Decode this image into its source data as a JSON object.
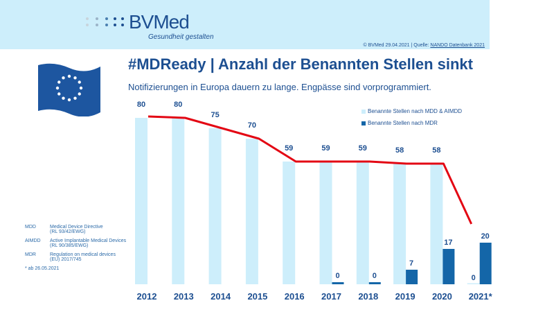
{
  "header": {
    "logo": "BVMed",
    "slogan": "Gesundheit gestalten",
    "copyright": "© BVMed 29.04.2021 | Quelle: ",
    "source_link": "NANDO Datenbank 2021"
  },
  "title": "#MDReady | Anzahl der Benannten Stellen sinkt",
  "subtitle": "Notifizierungen in Europa dauern zu lange. Engpässe sind vorprogrammiert.",
  "colors": {
    "header_bg": "#cdeefb",
    "light_bar": "#cdeefb",
    "dark_bar": "#1466a8",
    "line": "#e30613",
    "text": "#1d4f91"
  },
  "abbreviations": [
    {
      "key": "MDD",
      "l1": "Medical Device Directive",
      "l2": "(RL 93/42/EWG)"
    },
    {
      "key": "AIMDD",
      "l1": "Active Implantable Medical Devices",
      "l2": "(RL 90/385/EWG)"
    },
    {
      "key": "MDR",
      "l1": "Regulation on medical devices",
      "l2": "(EU) 2017/745"
    }
  ],
  "footnote": "* ab 26.05.2021",
  "chart_data": {
    "type": "bar",
    "categories": [
      "2012",
      "2013",
      "2014",
      "2015",
      "2016",
      "2017",
      "2018",
      "2019",
      "2020",
      "2021*"
    ],
    "series": [
      {
        "name": "Benannte Stellen nach MDD & AIMDD",
        "values": [
          80,
          80,
          75,
          70,
          59,
          59,
          59,
          58,
          58,
          0
        ]
      },
      {
        "name": "Benannte Stellen nach MDR",
        "values": [
          null,
          null,
          null,
          null,
          null,
          0,
          0,
          7,
          17,
          20
        ]
      }
    ],
    "trend_line": [
      80,
      80,
      75,
      70,
      59,
      59,
      59,
      58,
      58,
      29
    ],
    "ylim": [
      0,
      80
    ],
    "grid": false,
    "legend": "top-right"
  }
}
